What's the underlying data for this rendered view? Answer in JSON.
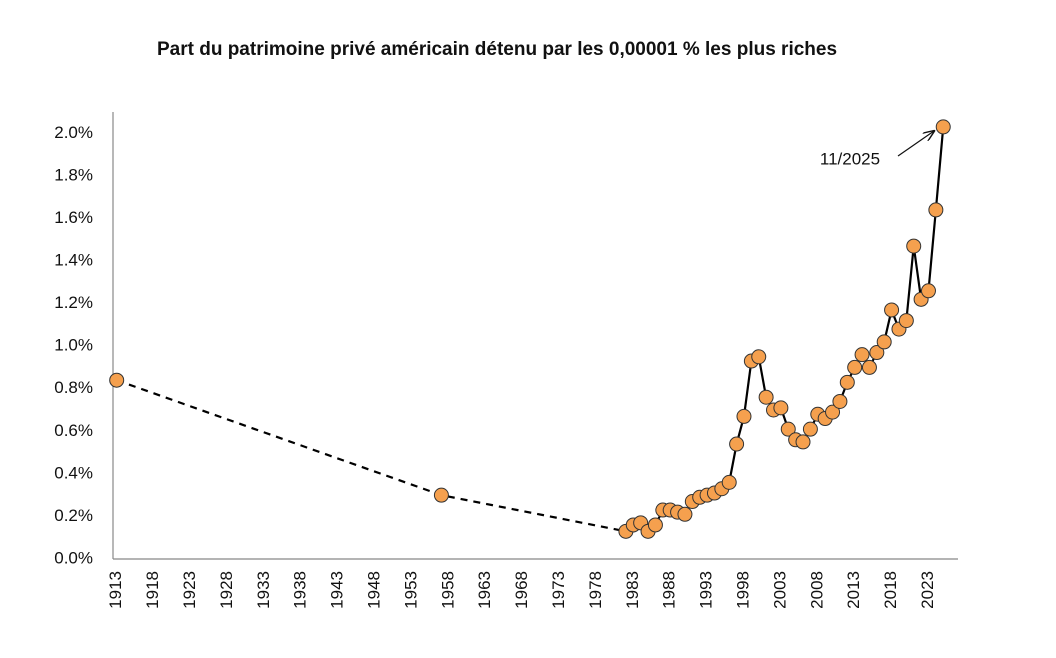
{
  "chart_data": {
    "type": "line",
    "title": "Part du patrimoine privé américain détenu par les 0,00001 % les plus riches",
    "xlim": [
      1912.5,
      2027
    ],
    "xticks": [
      1913,
      1918,
      1923,
      1928,
      1933,
      1938,
      1943,
      1948,
      1953,
      1958,
      1963,
      1968,
      1973,
      1978,
      1983,
      1988,
      1993,
      1998,
      2003,
      2008,
      2013,
      2018,
      2023
    ],
    "ylim": [
      0,
      2.1
    ],
    "yticks": [
      {
        "value": 0,
        "label": "0.0%"
      },
      {
        "value": 0.2,
        "label": "0.2%"
      },
      {
        "value": 0.4,
        "label": "0.4%"
      },
      {
        "value": 0.6,
        "label": "0.6%"
      },
      {
        "value": 0.8,
        "label": "0.8%"
      },
      {
        "value": 1.0,
        "label": "1.0%"
      },
      {
        "value": 1.2,
        "label": "1.2%"
      },
      {
        "value": 1.4,
        "label": "1.4%"
      },
      {
        "value": 1.6,
        "label": "1.6%"
      },
      {
        "value": 1.8,
        "label": "1.8%"
      },
      {
        "value": 2.0,
        "label": "2.0%"
      }
    ],
    "grid": false,
    "marker_color": "#f5a04e",
    "series": [
      {
        "color": "#000000",
        "line": "dashed",
        "x": [
          1913,
          1957
        ],
        "values": [
          0.84,
          0.3
        ]
      },
      {
        "color": "#000000",
        "line": "solid",
        "x": [
          1982,
          1983,
          1984,
          1985,
          1986,
          1987,
          1988,
          1989,
          1990,
          1991,
          1992,
          1993,
          1994,
          1995,
          1996,
          1997,
          1998,
          1999,
          2000,
          2001,
          2002,
          2003,
          2004,
          2005,
          2006,
          2007,
          2008,
          2009,
          2010,
          2011,
          2012,
          2013,
          2014,
          2015,
          2016,
          2017,
          2018,
          2019,
          2020,
          2021,
          2022,
          2023,
          2024,
          2025
        ],
        "values": [
          0.13,
          0.16,
          0.17,
          0.13,
          0.16,
          0.23,
          0.23,
          0.22,
          0.21,
          0.27,
          0.29,
          0.3,
          0.31,
          0.33,
          0.36,
          0.54,
          0.67,
          0.93,
          0.95,
          0.76,
          0.7,
          0.71,
          0.61,
          0.56,
          0.55,
          0.61,
          0.68,
          0.66,
          0.69,
          0.74,
          0.83,
          0.9,
          0.96,
          0.9,
          0.97,
          1.02,
          1.17,
          1.08,
          1.12,
          1.47,
          1.22,
          1.26,
          1.64,
          2.03
        ]
      }
    ],
    "annotation": {
      "text": "11/2025"
    }
  }
}
